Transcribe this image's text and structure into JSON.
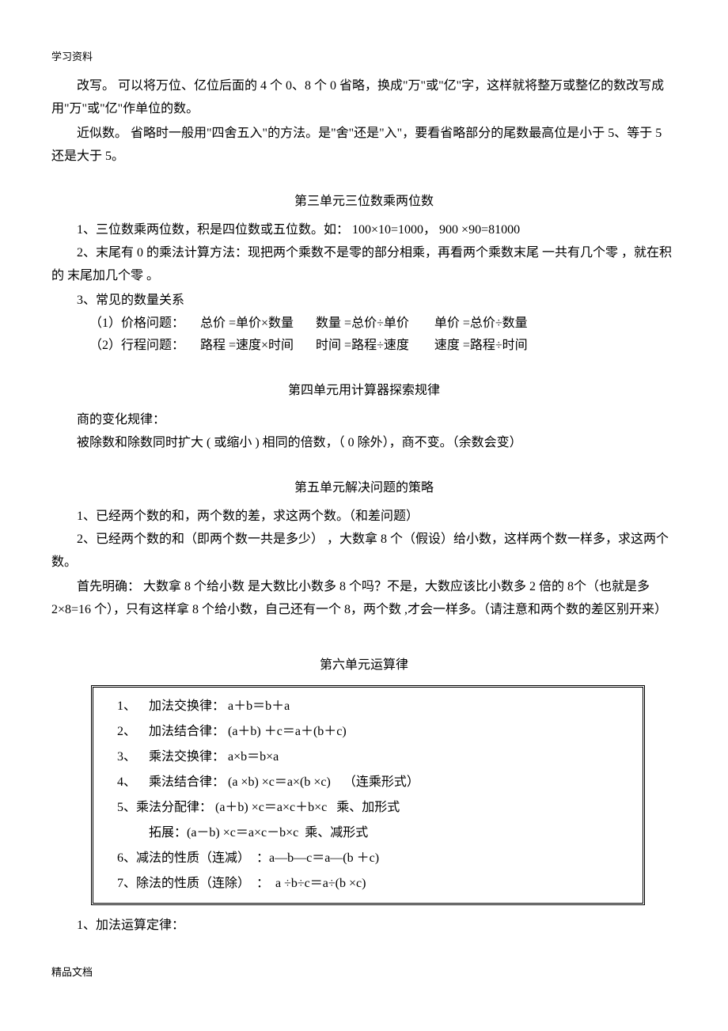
{
  "header": "学习资料",
  "footer": "精品文档",
  "intro": {
    "p1": "改写。 可以将万位、亿位后面的  4 个 0、8 个 0 省略，换成\"万\"或\"亿\"字，这样就将整万或整亿的数改写成用\"万\"或\"亿\"作单位的数。",
    "p2": "近似数。 省略时一般用\"四舍五入\"的方法。是\"舍\"还是\"入\"，要看省略部分的尾数最高位是小于  5、等于 5 还是大于 5。"
  },
  "unit3": {
    "title": "第三单元三位数乘两位数",
    "p1": "1、三位数乘两位数，积是四位数或五位数。如：   100×10=1000，  900  ×90=81000",
    "p2": "2、末尾有 0 的乘法计算方法：现把两个乘数不是零的部分相乘，再看两个乘数末尾   一共有几个零 ，就在积的 末尾加几个零 。",
    "p3": "3、常见的数量关系",
    "r1": "（1）价格问题：     总价 =单价×数量       数量 =总价÷单价        单价 =总价÷数量",
    "r2": "（2）行程问题：     路程 =速度×时间       时间 =路程÷速度        速度 =路程÷时间"
  },
  "unit4": {
    "title": "第四单元用计算器探索规律",
    "p1": "商的变化规律：",
    "p2": "被除数和除数同时扩大  ( 或缩小 ) 相同的倍数，（ 0 除外），商不变。（余数会变）"
  },
  "unit5": {
    "title": "第五单元解决问题的策略",
    "p1": "1、已经两个数的和，两个数的差，求这两个数。（和差问题）",
    "p2": "2、已经两个数的和（即两个数一共是多少） ，大数拿   8 个（假设）给小数，这样两个数一样多，求这两个数。",
    "p3": "首先明确： 大数拿 8 个给小数  是大数比小数多  8 个吗？不是，大数应该比小数多   2 倍的 8个（也就是多  2×8=16 个），只有这样拿  8 个给小数，自己还有一个   8，两个数 ,才会一样多。（请注意和两个数的差区别开来）"
  },
  "unit6": {
    "title": "第六单元运算律",
    "laws": {
      "l1": "1、    加法交换律： a＋b＝b＋a",
      "l2": "2、    加法结合律： (a＋b) ＋c＝a＋(b＋c)",
      "l3": "3、    乘法交换律： a×b＝b×a",
      "l4": "4、    乘法结合律： (a ×b) ×c＝a×(b ×c)    （连乘形式）",
      "l5": "5、乘法分配律： (a＋b) ×c＝a×c＋b×c   乘、加形式",
      "l5b": "          拓展：(a－b) ×c＝a×c－b×c  乘、减形式",
      "l6": "6、减法的性质（连减）  ：a—b—c＝a—(b ＋c)",
      "l7": "7、除法的性质（连除）  ：  a ÷b÷c＝a÷(b ×c)"
    },
    "p1": "1、加法运算定律："
  }
}
